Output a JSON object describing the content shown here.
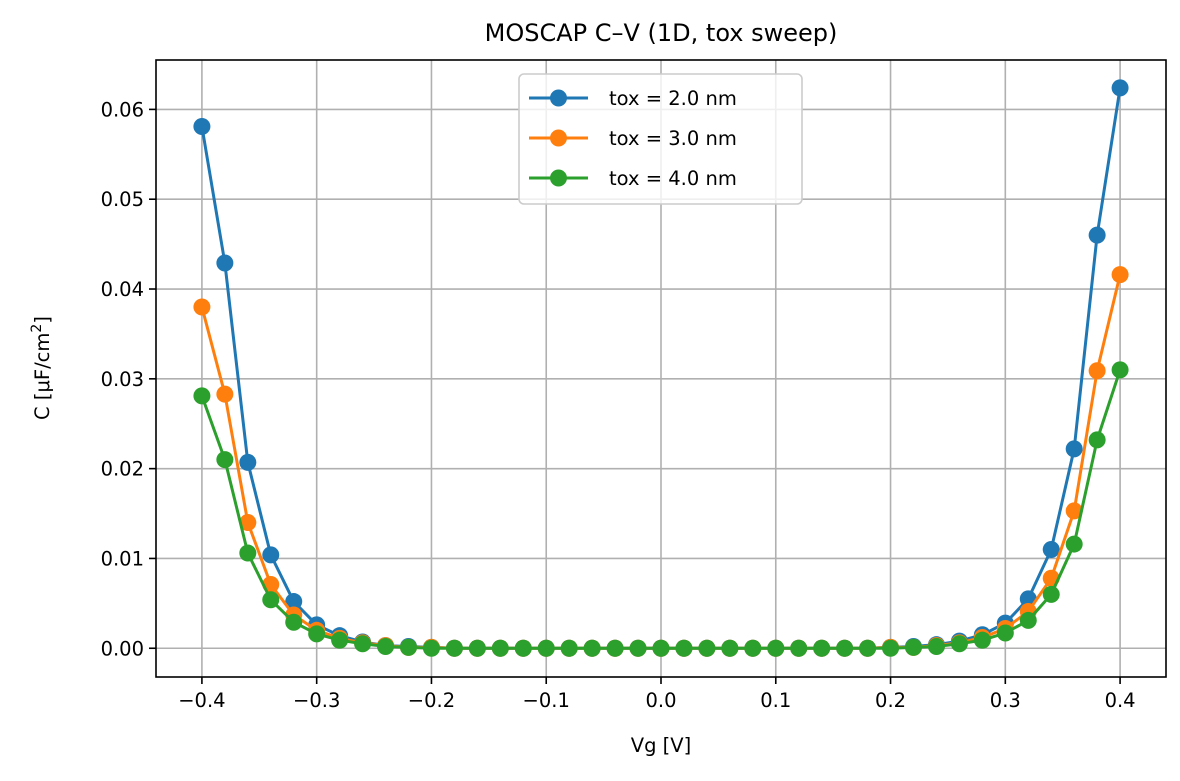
{
  "chart_data": {
    "type": "line",
    "title": "MOSCAP C–V (1D, tox sweep)",
    "xlabel": "Vg [V]",
    "ylabel_main": "C [μF/cm",
    "ylabel_sup": "2",
    "ylabel_end": "]",
    "xlim": [
      -0.44,
      0.44
    ],
    "ylim": [
      -0.0032,
      0.0655
    ],
    "xticks": [
      -0.4,
      -0.3,
      -0.2,
      -0.1,
      0.0,
      0.1,
      0.2,
      0.3,
      0.4
    ],
    "xtick_labels": [
      "−0.4",
      "−0.3",
      "−0.2",
      "−0.1",
      "0.0",
      "0.1",
      "0.2",
      "0.3",
      "0.4"
    ],
    "yticks": [
      0.0,
      0.01,
      0.02,
      0.03,
      0.04,
      0.05,
      0.06
    ],
    "ytick_labels": [
      "0.00",
      "0.01",
      "0.02",
      "0.03",
      "0.04",
      "0.05",
      "0.06"
    ],
    "grid": true,
    "legend_position": "top-center",
    "x": [
      -0.4,
      -0.38,
      -0.36,
      -0.34,
      -0.32,
      -0.3,
      -0.28,
      -0.26,
      -0.24,
      -0.22,
      -0.2,
      -0.18,
      -0.16,
      -0.14,
      -0.12,
      -0.1,
      -0.08,
      -0.06,
      -0.04,
      -0.02,
      0.0,
      0.02,
      0.04,
      0.06,
      0.08,
      0.1,
      0.12,
      0.14,
      0.16,
      0.18,
      0.2,
      0.22,
      0.24,
      0.26,
      0.28,
      0.3,
      0.32,
      0.34,
      0.36,
      0.38,
      0.4
    ],
    "series": [
      {
        "name": "tox = 2.0 nm",
        "color": "#1f77b4",
        "values": [
          0.0581,
          0.0429,
          0.0207,
          0.0104,
          0.0052,
          0.0026,
          0.0014,
          0.0007,
          0.0003,
          0.0002,
          0.0001,
          0.0,
          0.0,
          0.0,
          0.0,
          0.0,
          0.0,
          0.0,
          0.0,
          0.0,
          0.0,
          0.0,
          0.0,
          0.0,
          0.0,
          0.0,
          0.0,
          0.0,
          0.0,
          0.0,
          0.0001,
          0.0002,
          0.0004,
          0.0008,
          0.0015,
          0.0028,
          0.0055,
          0.011,
          0.0222,
          0.046,
          0.0624
        ]
      },
      {
        "name": "tox = 3.0 nm",
        "color": "#ff7f0e",
        "values": [
          0.038,
          0.0283,
          0.014,
          0.0071,
          0.0037,
          0.002,
          0.0011,
          0.0006,
          0.0003,
          0.0001,
          0.0001,
          0.0,
          0.0,
          0.0,
          0.0,
          0.0,
          0.0,
          0.0,
          0.0,
          0.0,
          0.0,
          0.0,
          0.0,
          0.0,
          0.0,
          0.0,
          0.0,
          0.0,
          0.0,
          0.0,
          0.0001,
          0.0001,
          0.0003,
          0.0006,
          0.0012,
          0.0022,
          0.0041,
          0.0078,
          0.0153,
          0.0309,
          0.0416
        ]
      },
      {
        "name": "tox = 4.0 nm",
        "color": "#2ca02c",
        "values": [
          0.0281,
          0.021,
          0.0106,
          0.0054,
          0.0029,
          0.0016,
          0.0009,
          0.0005,
          0.0002,
          0.0001,
          0.0,
          0.0,
          0.0,
          0.0,
          0.0,
          0.0,
          0.0,
          0.0,
          0.0,
          0.0,
          0.0,
          0.0,
          0.0,
          0.0,
          0.0,
          0.0,
          0.0,
          0.0,
          0.0,
          0.0,
          0.0,
          0.0001,
          0.0002,
          0.0005,
          0.0009,
          0.0017,
          0.0031,
          0.006,
          0.0116,
          0.0232,
          0.031
        ]
      }
    ]
  }
}
